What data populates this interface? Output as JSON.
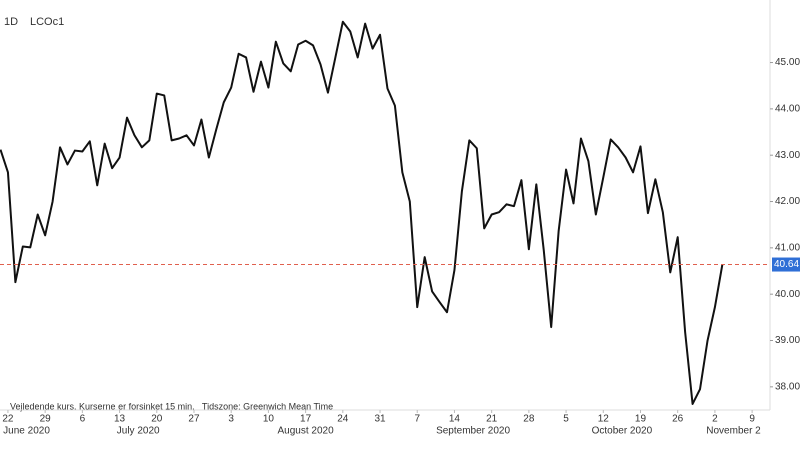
{
  "chart_data": {
    "type": "line",
    "interval": "1D",
    "symbol": "LCOc1",
    "note": "Vejledende kurs. Kurserne er forsinket 15 min.   Tidszone: Greenwich Mean Time",
    "categories": [
      null,
      "22",
      null,
      null,
      null,
      null,
      "29",
      null,
      null,
      null,
      null,
      "6",
      null,
      null,
      null,
      null,
      "13",
      null,
      null,
      null,
      null,
      "20",
      null,
      null,
      null,
      null,
      "27",
      null,
      null,
      null,
      null,
      "3",
      null,
      null,
      null,
      null,
      "10",
      null,
      null,
      null,
      null,
      "17",
      null,
      null,
      null,
      null,
      "24",
      null,
      null,
      null,
      null,
      "31",
      null,
      null,
      null,
      null,
      "7",
      null,
      null,
      null,
      null,
      "14",
      null,
      null,
      null,
      null,
      "21",
      null,
      null,
      null,
      null,
      "28",
      null,
      null,
      null,
      null,
      "5",
      null,
      null,
      null,
      null,
      "12",
      null,
      null,
      null,
      null,
      "19",
      null,
      null,
      null,
      null,
      "26",
      null,
      null,
      null,
      null,
      "2",
      null,
      null,
      null,
      null,
      "9",
      null,
      null
    ],
    "months": [
      "June 2020",
      "July 2020",
      "August 2020",
      "September 2020",
      "October 2020",
      "November 2"
    ],
    "values": [
      43.12,
      42.63,
      40.26,
      41.03,
      41.01,
      41.72,
      41.27,
      42.0,
      43.17,
      42.8,
      43.1,
      43.08,
      43.3,
      42.35,
      43.25,
      42.72,
      42.95,
      43.81,
      43.43,
      43.17,
      43.32,
      44.33,
      44.29,
      43.32,
      43.36,
      43.43,
      43.21,
      43.77,
      42.95,
      43.56,
      44.14,
      44.46,
      45.19,
      45.11,
      44.37,
      45.02,
      44.46,
      45.45,
      44.98,
      44.81,
      45.39,
      45.47,
      45.37,
      44.96,
      44.35,
      45.11,
      45.88,
      45.67,
      45.11,
      45.84,
      45.3,
      45.6,
      44.44,
      44.07,
      42.63,
      42.0,
      39.72,
      40.8,
      40.06,
      39.83,
      39.61,
      40.52,
      42.22,
      43.32,
      43.15,
      41.42,
      41.72,
      41.77,
      41.94,
      41.9,
      42.46,
      40.97,
      42.37,
      40.95,
      39.29,
      41.36,
      42.69,
      41.96,
      43.36,
      42.87,
      41.72,
      42.52,
      43.34,
      43.17,
      42.95,
      42.63,
      43.19,
      41.75,
      42.48,
      41.77,
      40.47,
      41.23,
      39.18,
      37.63,
      37.95,
      38.99,
      39.72,
      40.64,
      null,
      null,
      null,
      null,
      null,
      null
    ],
    "value_labels": [
      null,
      null,
      null,
      null,
      null,
      null,
      null,
      null,
      null,
      null,
      null,
      null,
      null,
      null,
      null,
      null,
      null,
      null,
      null,
      null,
      null,
      null,
      null,
      null,
      null,
      null,
      null,
      null,
      null,
      null,
      null,
      null,
      null,
      null,
      null,
      null,
      null,
      null,
      null,
      null,
      null,
      null,
      null,
      null,
      null,
      null,
      null,
      null,
      null,
      null,
      null,
      null,
      null,
      null,
      null,
      null,
      null,
      null,
      null,
      null,
      null,
      null,
      null,
      null,
      null,
      null,
      null,
      null,
      null,
      null,
      null,
      null,
      null,
      null,
      null,
      null,
      null,
      null,
      null,
      null,
      null,
      null,
      null,
      null,
      null,
      null,
      null,
      null,
      null,
      null,
      null,
      null,
      null,
      null,
      null,
      null,
      null,
      "40.64",
      null,
      null,
      null,
      null,
      null,
      null
    ],
    "color": "#111111",
    "last_value_color": "#2f6fd6",
    "reference_line_color": "#e0604e",
    "ylim": [
      37.5,
      46.35
    ],
    "yticks": [
      {
        "value": 38,
        "label": "38.00"
      },
      {
        "value": 39,
        "label": "39.00"
      },
      {
        "value": 40,
        "label": "40.00"
      },
      {
        "value": 41,
        "label": "41.00"
      },
      {
        "value": 42,
        "label": "42.00"
      },
      {
        "value": 43,
        "label": "43.00"
      },
      {
        "value": 44,
        "label": "44.00"
      },
      {
        "value": 45,
        "label": "45.00"
      }
    ]
  }
}
